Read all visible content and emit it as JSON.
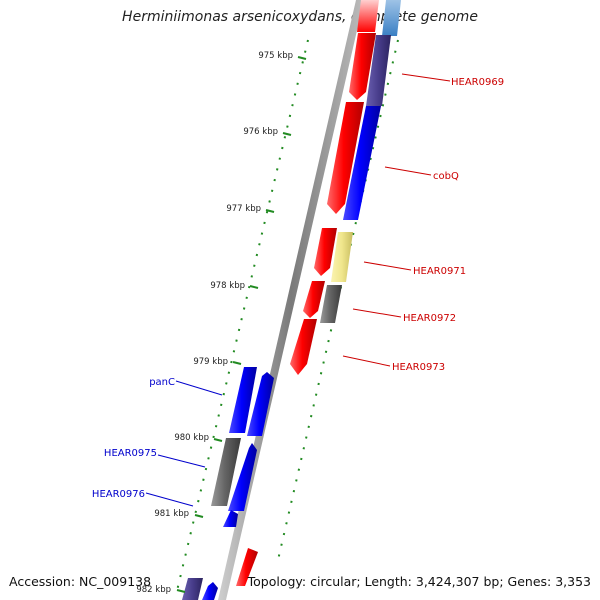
{
  "title": "Herminiimonas arsenicoxydans, complete genome",
  "footer": {
    "accession": "Accession: NC_009138",
    "topology": "Topology: circular; Length: 3,424,307 bp; Genes: 3,353"
  },
  "ticks": [
    "975 kbp",
    "976 kbp",
    "977 kbp",
    "978 kbp",
    "979 kbp",
    "980 kbp",
    "981 kbp",
    "982 kbp"
  ],
  "genes_right": [
    "HEAR0969",
    "cobQ",
    "HEAR0971",
    "HEAR0972",
    "HEAR0973"
  ],
  "genes_left": [
    "panC",
    "HEAR0975",
    "HEAR0976"
  ],
  "colors": {
    "forward": "#ff0000",
    "reverse": "#0000ff",
    "grey": "#666666",
    "yellow": "#f0e68c",
    "navy": "#483d8b",
    "tick": "#228b22",
    "label_right": "#cc0000",
    "label_left": "#0000cc"
  }
}
